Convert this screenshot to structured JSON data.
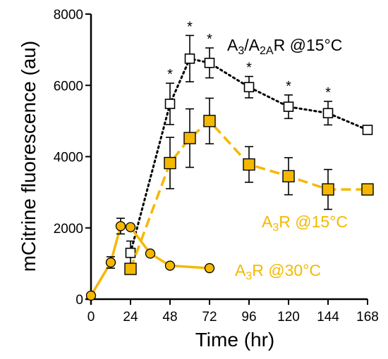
{
  "chart_data": {
    "type": "line",
    "xlabel": "Time (hr)",
    "ylabel": "mCitrine fluorescence (au)",
    "xlim": [
      0,
      168
    ],
    "ylim": [
      0,
      8000
    ],
    "xticks": [
      0,
      24,
      48,
      72,
      96,
      120,
      144,
      168
    ],
    "yticks": [
      0,
      2000,
      4000,
      6000,
      8000
    ],
    "grid": false,
    "legend": "none",
    "series": [
      {
        "name": "A3/A2AR @15°C",
        "label_parts": {
          "base1": "A",
          "sub1": "3",
          "mid": "/A",
          "sub2": "2A",
          "tail": "R @15°C"
        },
        "color": "#000000",
        "marker": "open-square",
        "line": "dotted",
        "x": [
          24,
          48,
          60,
          72,
          96,
          120,
          144,
          168
        ],
        "y": [
          1300,
          5480,
          6750,
          6630,
          5950,
          5400,
          5220,
          4750
        ],
        "err": [
          330,
          580,
          650,
          420,
          300,
          330,
          330,
          0
        ],
        "significant": [
          false,
          true,
          true,
          true,
          true,
          true,
          true,
          false
        ]
      },
      {
        "name": "A3R @15°C",
        "label_parts": {
          "base1": "A",
          "sub1": "3",
          "tail": "R @15°C"
        },
        "color": "#F5B800",
        "marker": "filled-square",
        "line": "dashed",
        "x": [
          24,
          48,
          60,
          72,
          96,
          120,
          144,
          168
        ],
        "y": [
          850,
          3820,
          4520,
          5000,
          3780,
          3450,
          3080,
          3080
        ],
        "err": [
          0,
          720,
          820,
          640,
          500,
          520,
          560,
          0
        ]
      },
      {
        "name": "A3R @30°C",
        "label_parts": {
          "base1": "A",
          "sub1": "3",
          "tail": "R @30°C"
        },
        "color": "#F5B800",
        "marker": "filled-circle",
        "line": "solid",
        "x": [
          0,
          12,
          18,
          24,
          36,
          48,
          72
        ],
        "y": [
          100,
          1030,
          2050,
          2020,
          1280,
          940,
          870
        ],
        "err": [
          0,
          160,
          220,
          0,
          0,
          0,
          0
        ]
      }
    ]
  }
}
